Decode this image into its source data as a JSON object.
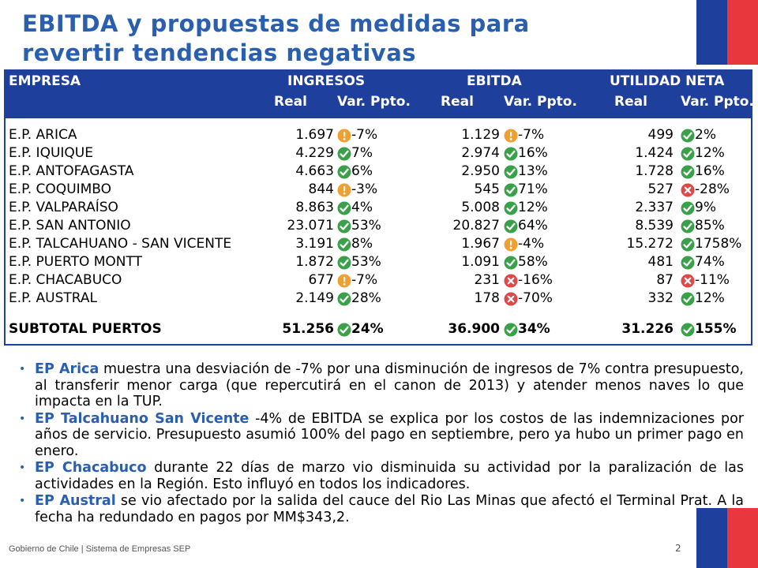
{
  "title_line1": "EBITDA  y propuestas de medidas para",
  "title_line2": "revertir tendencias negativas",
  "header": {
    "empresa": "EMPRESA",
    "ingresos": "INGRESOS",
    "ebitda": "EBITDA",
    "utilidad": "UTILIDAD NETA",
    "real": "Real",
    "var": "Var. Ppto."
  },
  "colors": {
    "ok": "#3aa04a",
    "warn": "#f0a030",
    "bad": "#e04848",
    "brand_blue": "#1f3f9c",
    "title_blue": "#2a5fb0"
  },
  "rows": [
    {
      "name": "E.P. ARICA",
      "ing": "1.697",
      "ing_s": "warn",
      "ing_v": "-7%",
      "eb": "1.129",
      "eb_s": "warn",
      "eb_v": "-7%",
      "ut": "499",
      "ut_s": "ok",
      "ut_v": "2%"
    },
    {
      "name": "E.P. IQUIQUE",
      "ing": "4.229",
      "ing_s": "ok",
      "ing_v": "7%",
      "eb": "2.974",
      "eb_s": "ok",
      "eb_v": "16%",
      "ut": "1.424",
      "ut_s": "ok",
      "ut_v": "12%"
    },
    {
      "name": "E.P. ANTOFAGASTA",
      "ing": "4.663",
      "ing_s": "ok",
      "ing_v": "6%",
      "eb": "2.950",
      "eb_s": "ok",
      "eb_v": "13%",
      "ut": "1.728",
      "ut_s": "ok",
      "ut_v": "16%"
    },
    {
      "name": "E.P. COQUIMBO",
      "ing": "844",
      "ing_s": "warn",
      "ing_v": "-3%",
      "eb": "545",
      "eb_s": "ok",
      "eb_v": "71%",
      "ut": "527",
      "ut_s": "bad",
      "ut_v": "-28%"
    },
    {
      "name": "E.P. VALPARAÍSO",
      "ing": "8.863",
      "ing_s": "ok",
      "ing_v": "4%",
      "eb": "5.008",
      "eb_s": "ok",
      "eb_v": "12%",
      "ut": "2.337",
      "ut_s": "ok",
      "ut_v": "9%"
    },
    {
      "name": "E.P. SAN ANTONIO",
      "ing": "23.071",
      "ing_s": "ok",
      "ing_v": "53%",
      "eb": "20.827",
      "eb_s": "ok",
      "eb_v": "64%",
      "ut": "8.539",
      "ut_s": "ok",
      "ut_v": "85%"
    },
    {
      "name": "E.P. TALCAHUANO - SAN VICENTE",
      "ing": "3.191",
      "ing_s": "ok",
      "ing_v": "8%",
      "eb": "1.967",
      "eb_s": "warn",
      "eb_v": "-4%",
      "ut": "15.272",
      "ut_s": "ok",
      "ut_v": "1758%"
    },
    {
      "name": "E.P. PUERTO MONTT",
      "ing": "1.872",
      "ing_s": "ok",
      "ing_v": "53%",
      "eb": "1.091",
      "eb_s": "ok",
      "eb_v": "58%",
      "ut": "481",
      "ut_s": "ok",
      "ut_v": "74%"
    },
    {
      "name": "E.P. CHACABUCO",
      "ing": "677",
      "ing_s": "warn",
      "ing_v": "-7%",
      "eb": "231",
      "eb_s": "bad",
      "eb_v": "-16%",
      "ut": "87",
      "ut_s": "bad",
      "ut_v": "-11%"
    },
    {
      "name": "E.P. AUSTRAL",
      "ing": "2.149",
      "ing_s": "ok",
      "ing_v": "28%",
      "eb": "178",
      "eb_s": "bad",
      "eb_v": "-70%",
      "ut": "332",
      "ut_s": "ok",
      "ut_v": "12%"
    }
  ],
  "subtotal": {
    "name": "SUBTOTAL PUERTOS",
    "ing": "51.256",
    "ing_s": "ok",
    "ing_v": "24%",
    "eb": "36.900",
    "eb_s": "ok",
    "eb_v": "34%",
    "ut": "31.226",
    "ut_s": "ok",
    "ut_v": "155%"
  },
  "bullets": [
    {
      "hl": "EP Arica",
      "text": " muestra una desviación de -7% por una disminución de ingresos de 7% contra presupuesto, al transferir menor carga (que repercutirá en el canon de 2013) y atender menos naves lo que impacta en la TUP."
    },
    {
      "hl": "EP Talcahuano San Vicente",
      "text": " -4% de EBITDA se explica por los costos de las indemnizaciones por años de servicio. Presupuesto asumió 100% del pago en septiembre, pero ya hubo un primer pago en enero."
    },
    {
      "hl": "EP Chacabuco",
      "text": " durante 22 días de marzo vio disminuida su actividad por la paralización de las actividades en la Región. Esto influyó en todos los indicadores."
    },
    {
      "hl": "EP Austral",
      "text": " se vio afectado  por la salida del cauce del Rio Las Minas que afectó  el Terminal Prat. A la fecha ha redundado en pagos por MM$343,2."
    }
  ],
  "footer": "Gobierno de Chile | Sistema de Empresas SEP",
  "page_number": "2"
}
